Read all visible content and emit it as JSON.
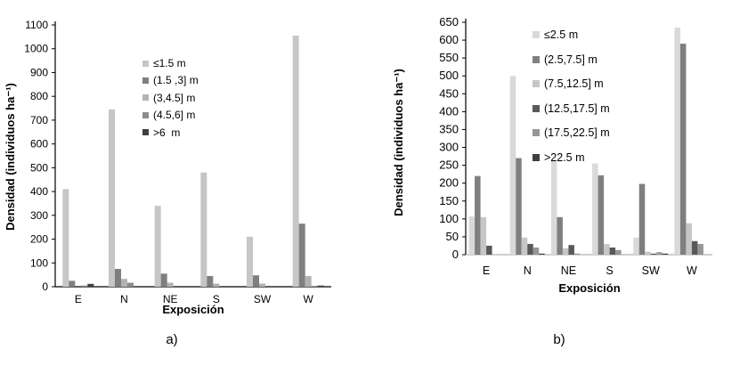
{
  "page": {
    "background": "#ffffff"
  },
  "chart_data": [
    {
      "id": "a",
      "type": "bar",
      "panel_label": "a)",
      "xlabel": "Exposición",
      "ylabel": "Densidad (individuos ha⁻¹)",
      "categories": [
        "E",
        "N",
        "NE",
        "S",
        "SW",
        "W"
      ],
      "ylim": [
        0,
        1100
      ],
      "ytick_step": 100,
      "grid": false,
      "legend_position": "inside-top-center",
      "series": [
        {
          "name": "≤1.5 m",
          "color": "#c6c6c6",
          "values": [
            410,
            745,
            340,
            480,
            210,
            1055
          ]
        },
        {
          "name": "(1.5 ,3] m",
          "color": "#7f7f7f",
          "values": [
            25,
            75,
            55,
            45,
            48,
            265
          ]
        },
        {
          "name": "(3,4.5] m",
          "color": "#b2b2b2",
          "values": [
            0,
            33,
            17,
            13,
            13,
            45
          ]
        },
        {
          "name": "(4.5,6] m",
          "color": "#8c8c8c",
          "values": [
            5,
            17,
            0,
            0,
            0,
            3
          ]
        },
        {
          "name": ">6  m",
          "color": "#3f3f3f",
          "values": [
            12,
            0,
            0,
            0,
            0,
            5
          ]
        }
      ]
    },
    {
      "id": "b",
      "type": "bar",
      "panel_label": "b)",
      "xlabel": "Exposición",
      "ylabel": "Densidad (individuos ha⁻¹)",
      "categories": [
        "E",
        "N",
        "NE",
        "S",
        "SW",
        "W"
      ],
      "ylim": [
        0,
        650
      ],
      "ytick_step": 50,
      "grid": false,
      "legend_position": "inside-top-center",
      "series": [
        {
          "name": "≤2.5 m",
          "color": "#d9d9d9",
          "values": [
            107,
            500,
            265,
            255,
            48,
            635
          ]
        },
        {
          "name": "(2.5,7.5] m",
          "color": "#7f7f7f",
          "values": [
            220,
            270,
            105,
            222,
            198,
            590
          ]
        },
        {
          "name": "(7.5,12.5] m",
          "color": "#c6c6c6",
          "values": [
            105,
            48,
            18,
            30,
            8,
            88
          ]
        },
        {
          "name": "(12.5,17.5] m",
          "color": "#595959",
          "values": [
            25,
            30,
            27,
            20,
            3,
            38
          ]
        },
        {
          "name": "(17.5,22.5] m",
          "color": "#969696",
          "values": [
            0,
            20,
            3,
            13,
            7,
            30
          ]
        },
        {
          "name": ">22.5 m",
          "color": "#3f3f3f",
          "values": [
            0,
            3,
            0,
            0,
            3,
            0
          ]
        }
      ]
    }
  ]
}
